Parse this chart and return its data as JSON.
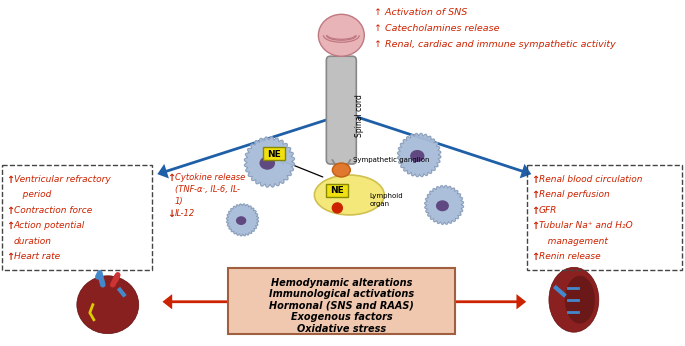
{
  "top_right_lines": [
    "↑ Activation of SNS",
    "↑ Catecholamines release",
    "↑ Renal, cardiac and immune sympathetic activity"
  ],
  "left_box_lines": [
    [
      "↑",
      "Ventricular refractory"
    ],
    [
      "",
      "   period"
    ],
    [
      "↑",
      "Contraction force"
    ],
    [
      "↑",
      "Action potential"
    ],
    [
      "",
      "duration"
    ],
    [
      "↑",
      "Heart rate"
    ]
  ],
  "right_box_lines": [
    [
      "↑",
      "Renal blood circulation"
    ],
    [
      "↑",
      "Renal perfusion"
    ],
    [
      "↑",
      "GFR"
    ],
    [
      "↑",
      "Tubular Na⁺ and H₂O"
    ],
    [
      "",
      "   management"
    ],
    [
      "↑",
      "Renin release"
    ]
  ],
  "center_box_lines": [
    "Hemodynamic alterations",
    "Immunological activations",
    "Hormonal (SNS and RAAS)",
    "Exogenous factors",
    "Oxidative stress"
  ],
  "cytokine_lines": [
    [
      "↑",
      "Cytokine release"
    ],
    [
      "",
      "(TNF-α·, IL-6, IL-"
    ],
    [
      "",
      "1)"
    ],
    [
      "↓",
      "IL-12"
    ]
  ],
  "blue": "#1e5fa8",
  "red": "#cc2200",
  "red_text": "#cc2200",
  "gray_spine": "#a0a0a0",
  "orange_ganglion": "#e07830",
  "yellow_ne": "#f0e010",
  "yellow_lymph": "#f5e87a",
  "cell_outer": "#a8bcd8",
  "cell_nucleus": "#604880",
  "brain_color": "#e8b4b8",
  "center_box_fill": "#f0c8b0",
  "center_box_edge": "#a06040"
}
